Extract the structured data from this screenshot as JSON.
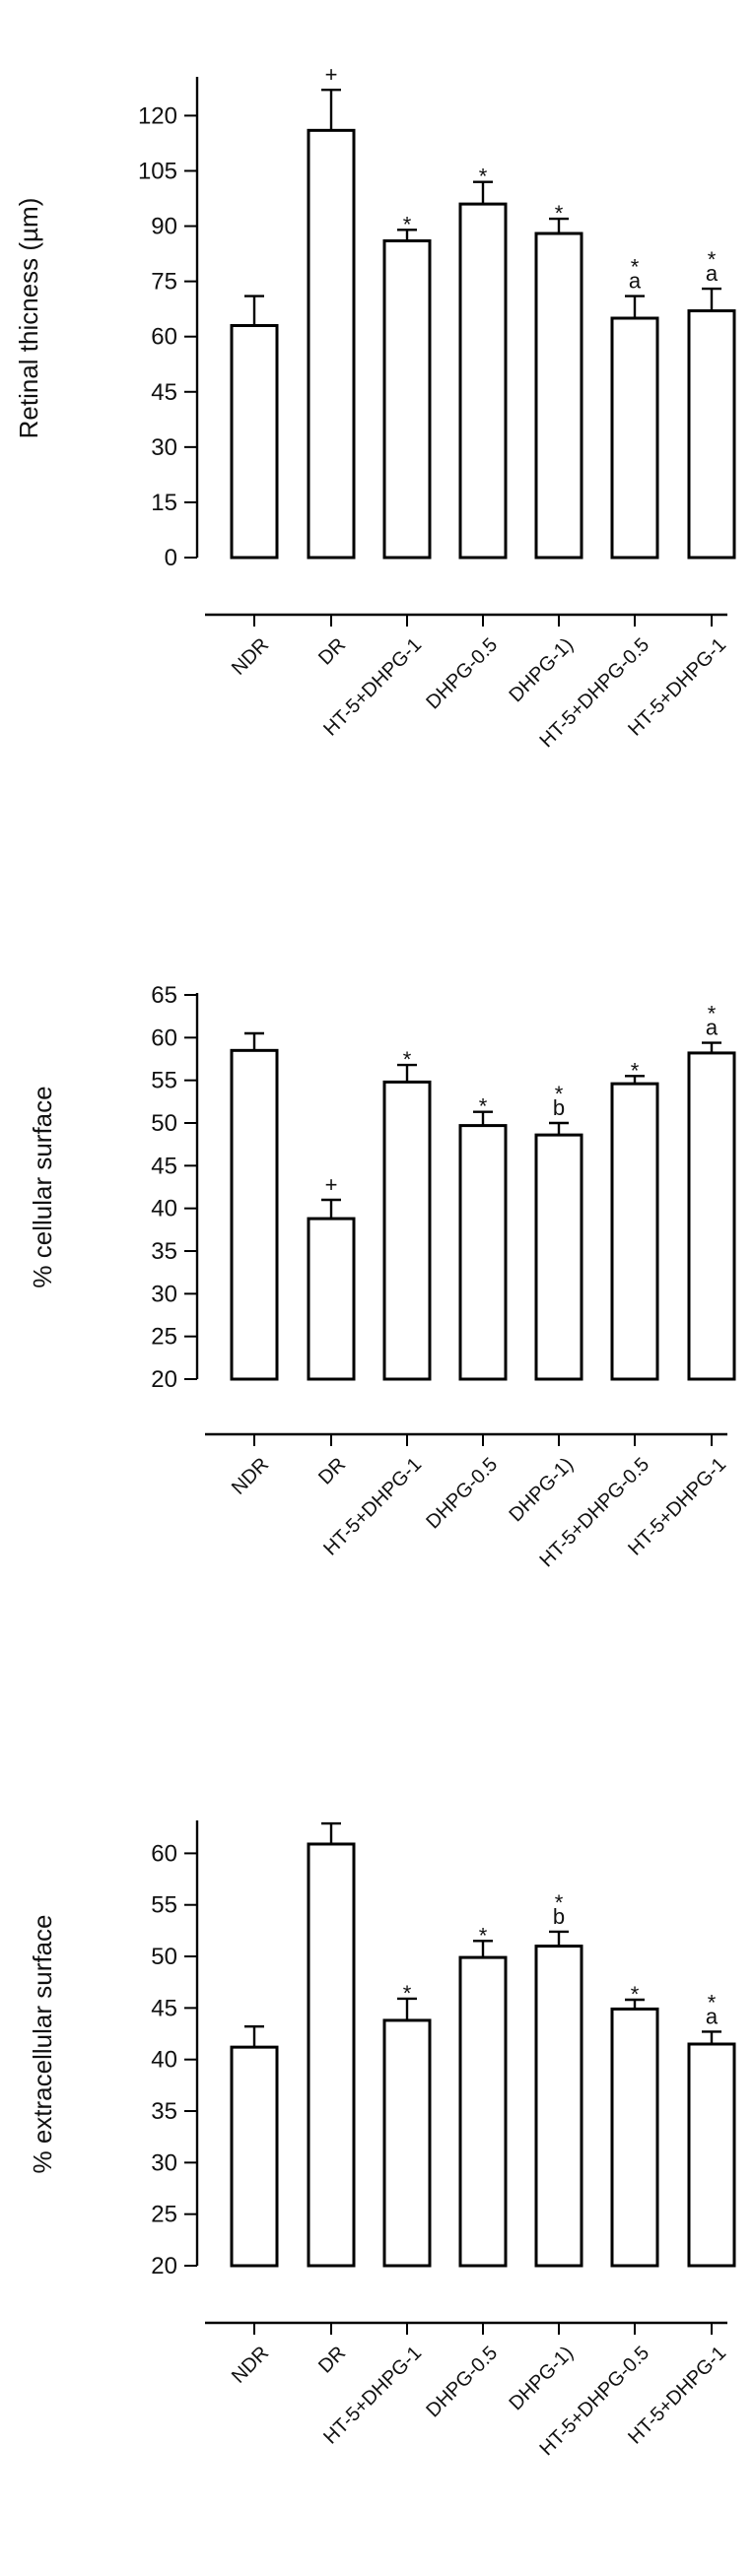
{
  "chart_data": [
    {
      "type": "bar",
      "ylabel": "Retinal thicness (µm)",
      "xlabel": "",
      "ylim": [
        0,
        130
      ],
      "yticks": [
        0,
        15,
        30,
        45,
        60,
        75,
        90,
        105,
        120
      ],
      "categories": [
        "NDR",
        "DR",
        "HT-5+DHPG-1",
        "DHPG-0.5",
        "DHPG-1)",
        "HT-5+DHPG-0.5",
        "HT-5+DHPG-1"
      ],
      "values": [
        63,
        116,
        86,
        96,
        88,
        65,
        67
      ],
      "errors": [
        8,
        11,
        3,
        6,
        4,
        6,
        6
      ],
      "annotations": [
        [],
        [
          "+"
        ],
        [
          "*"
        ],
        [
          "*"
        ],
        [
          "*"
        ],
        [
          "*",
          "a"
        ],
        [
          "*",
          "a"
        ]
      ],
      "grid": false
    },
    {
      "type": "bar",
      "ylabel": "% cellular surface",
      "xlabel": "",
      "ylim": [
        20,
        65
      ],
      "yticks": [
        20,
        25,
        30,
        35,
        40,
        45,
        50,
        55,
        60,
        65
      ],
      "categories": [
        "NDR",
        "DR",
        "HT-5+DHPG-1",
        "DHPG-0.5",
        "DHPG-1)",
        "HT-5+DHPG-0.5",
        "HT-5+DHPG-1"
      ],
      "values": [
        58.5,
        38.8,
        54.8,
        49.7,
        48.6,
        54.6,
        58.2
      ],
      "errors": [
        2.0,
        2.2,
        2.0,
        1.6,
        1.4,
        0.9,
        1.2
      ],
      "annotations": [
        [],
        [
          "+"
        ],
        [
          "*"
        ],
        [
          "*"
        ],
        [
          "*",
          "b"
        ],
        [
          "*"
        ],
        [
          "*",
          "a"
        ]
      ],
      "grid": false
    },
    {
      "type": "bar",
      "ylabel": "% extracellular surface",
      "xlabel": "",
      "ylim": [
        20,
        63
      ],
      "yticks": [
        20,
        25,
        30,
        35,
        40,
        45,
        50,
        55,
        60
      ],
      "categories": [
        "NDR",
        "DR",
        "HT-5+DHPG-1",
        "DHPG-0.5",
        "DHPG-1)",
        "HT-5+DHPG-0.5",
        "HT-5+DHPG-1"
      ],
      "values": [
        41.2,
        60.9,
        43.8,
        49.9,
        51.0,
        44.9,
        41.5
      ],
      "errors": [
        2.0,
        2.0,
        2.1,
        1.6,
        1.4,
        0.9,
        1.2
      ],
      "annotations": [
        [],
        [],
        [
          "*"
        ],
        [
          "*"
        ],
        [
          "*",
          "b"
        ],
        [
          "*"
        ],
        [
          "*",
          "a"
        ]
      ],
      "grid": false
    }
  ]
}
